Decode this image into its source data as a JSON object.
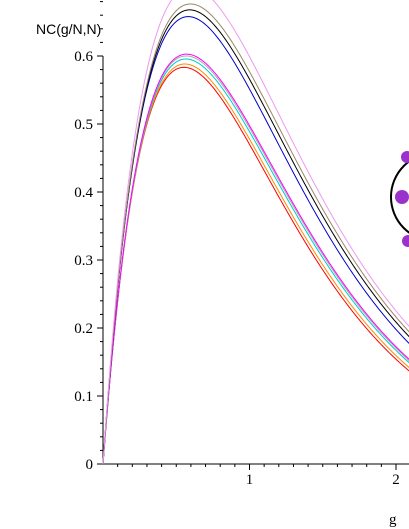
{
  "chart_data": {
    "type": "line",
    "title": "",
    "ylabel": "NC(g/N,N)",
    "xlabel": "g",
    "xlim": [
      0,
      2.1
    ],
    "ylim": [
      0,
      0.69
    ],
    "x_ticks": [
      1,
      2
    ],
    "y_ticks": [
      0,
      0.1,
      0.2,
      0.3,
      0.4,
      0.5,
      0.6
    ],
    "grid": false,
    "legend": "none",
    "series": [
      {
        "color": "#ff0000",
        "peak_x": 0.67,
        "peak_y": 0.572,
        "end_y": 0.135
      },
      {
        "color": "#ff8c00",
        "peak_x": 0.67,
        "peak_y": 0.578,
        "end_y": 0.14
      },
      {
        "color": "#00cccc",
        "peak_x": 0.68,
        "peak_y": 0.585,
        "end_y": 0.147
      },
      {
        "color": "#aaaaaa",
        "peak_x": 0.68,
        "peak_y": 0.59,
        "end_y": 0.15
      },
      {
        "color": "#ff00ff",
        "peak_x": 0.68,
        "peak_y": 0.593,
        "end_y": 0.152
      },
      {
        "color": "#0000cc",
        "peak_x": 0.73,
        "peak_y": 0.64,
        "end_y": 0.175
      },
      {
        "color": "#000000",
        "peak_x": 0.74,
        "peak_y": 0.65,
        "end_y": 0.185
      },
      {
        "color": "#998866",
        "peak_x": 0.74,
        "peak_y": 0.66,
        "end_y": 0.192
      },
      {
        "color": "#ee99ee",
        "peak_x": 0.76,
        "peak_y": 0.68,
        "end_y": 0.2
      }
    ],
    "inset": {
      "type": "ring-diagram",
      "node_color": "#9933cc",
      "ring_color": "#000000"
    }
  }
}
